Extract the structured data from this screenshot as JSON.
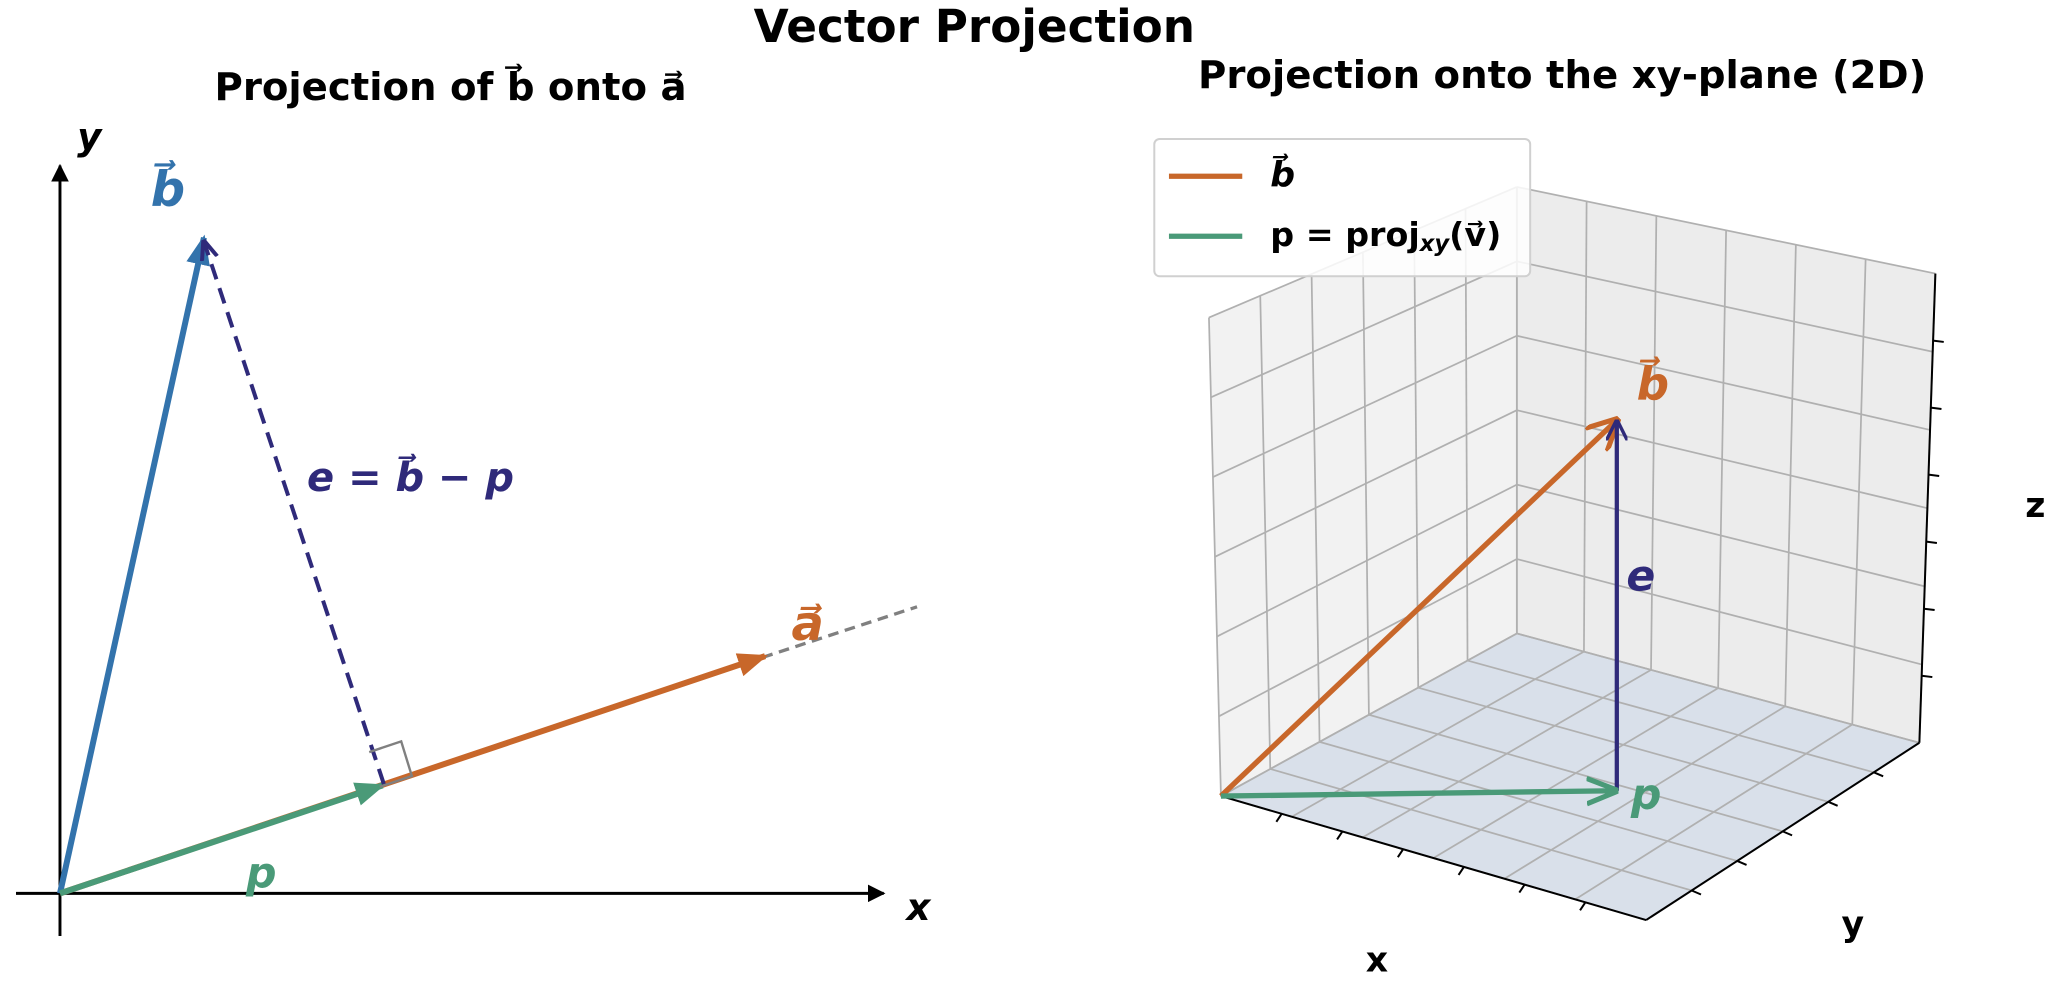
{
  "title": "Vector Projection",
  "left_panel": {
    "title": "Projection of b⃗ onto a⃗",
    "x_axis_label": "x",
    "y_axis_label": "y",
    "labels": {
      "b": "b⃗",
      "a": "a⃗",
      "p": "p",
      "e": "e = b⃗ − p"
    }
  },
  "right_panel": {
    "title": "Projection onto the xy-plane (2D)",
    "legend": [
      {
        "label": "b⃗"
      },
      {
        "label_main": "p = proj",
        "label_sub": "xy",
        "label_tail": "(v⃗)"
      }
    ],
    "labels": {
      "b": "b⃗",
      "e": "e",
      "p": "p"
    },
    "x_axis_label": "x",
    "y_axis_label": "y",
    "z_axis_label": "z"
  }
}
